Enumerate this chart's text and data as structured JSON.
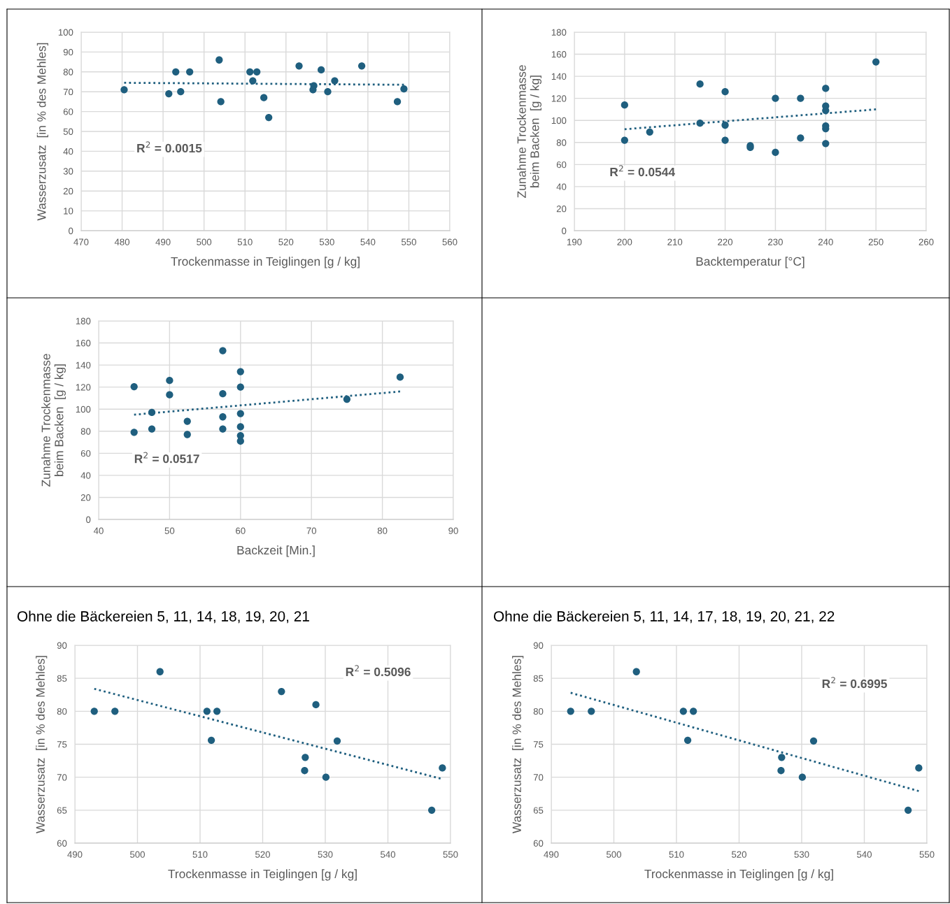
{
  "chart_data": [
    {
      "type": "scatter",
      "xlabel": "Trockenmasse in Teiglingen [g / kg]",
      "ylabel": "Wasserzusatz  [in % des Mehles]",
      "xlim": [
        470,
        560
      ],
      "xticks": [
        470,
        480,
        490,
        500,
        510,
        520,
        530,
        540,
        550,
        560
      ],
      "ylim": [
        0,
        100
      ],
      "yticks": [
        0,
        10,
        20,
        30,
        40,
        50,
        60,
        70,
        80,
        90,
        100
      ],
      "grid": true,
      "annotations": [
        "R$^{2}$ = 0.0015"
      ],
      "series": [
        {
          "marker": "circle",
          "color": "#1f5f7f",
          "x": [
            480.5,
            491.4,
            493.1,
            494.3,
            496.5,
            503.7,
            504.1,
            511.2,
            512.9,
            511.9,
            514.6,
            515.8,
            523.2,
            526.8,
            526.6,
            528.6,
            530.2,
            531.9,
            538.5,
            547.2,
            548.8
          ],
          "values": [
            71,
            69,
            80,
            70,
            80,
            86,
            65,
            80,
            80,
            75.5,
            67,
            57,
            83,
            73,
            71,
            81,
            70,
            75.5,
            83,
            65,
            71.4
          ]
        },
        {
          "type": "line",
          "marker": "none",
          "line_style": "dotted",
          "color": "#1f5f7f",
          "x": [
            480.5,
            548.8
          ],
          "values": [
            74.5,
            73.5
          ]
        }
      ]
    },
    {
      "type": "scatter",
      "xlabel": "Backtemperatur [°C]",
      "ylabel": "Zunahme Trockenmasse\nbeim Backen  [g / kg]",
      "xlim": [
        190,
        260
      ],
      "xticks": [
        190,
        200,
        210,
        220,
        230,
        240,
        250,
        260
      ],
      "ylim": [
        0,
        180
      ],
      "yticks": [
        0,
        20,
        40,
        60,
        80,
        100,
        120,
        140,
        160,
        180
      ],
      "grid": true,
      "annotations": [
        "R$^{2}$ = 0.0544"
      ],
      "series": [
        {
          "marker": "circle",
          "color": "#1f5f7f",
          "x": [
            200,
            200,
            205,
            215,
            215,
            220,
            220,
            220,
            225,
            225,
            230,
            230,
            235,
            235,
            240,
            240,
            240,
            240,
            240,
            240,
            250
          ],
          "values": [
            114,
            82,
            89.5,
            133,
            97.5,
            126,
            95.7,
            82,
            77,
            75.5,
            120,
            71,
            120,
            84,
            129,
            113,
            109,
            95,
            92.5,
            79,
            153
          ]
        },
        {
          "type": "line",
          "marker": "none",
          "line_style": "dotted",
          "color": "#1f5f7f",
          "x": [
            200,
            250
          ],
          "values": [
            92,
            110
          ]
        }
      ]
    },
    {
      "type": "scatter",
      "xlabel": "Backzeit [Min.]",
      "ylabel": "Zunahme Trockenmasse\nbeim Backen  [g / kg]",
      "xlim": [
        40,
        90
      ],
      "xticks": [
        40,
        50,
        60,
        70,
        80,
        90
      ],
      "ylim": [
        0,
        180
      ],
      "yticks": [
        0,
        20,
        40,
        60,
        80,
        100,
        120,
        140,
        160,
        180
      ],
      "grid": true,
      "annotations": [
        "R$^{2}$ = 0.0517"
      ],
      "series": [
        {
          "marker": "circle",
          "color": "#1f5f7f",
          "x": [
            45,
            45,
            47.5,
            47.5,
            50,
            50,
            52.5,
            52.5,
            57.5,
            57.5,
            57.5,
            57.5,
            60,
            60,
            60,
            60,
            60,
            60,
            75,
            82.5
          ],
          "values": [
            120.4,
            79,
            97,
            82,
            126,
            113,
            89,
            77,
            153,
            114,
            93,
            82,
            134,
            120,
            96,
            84,
            76,
            71,
            109,
            129
          ]
        },
        {
          "type": "line",
          "marker": "none",
          "line_style": "dotted",
          "color": "#1f5f7f",
          "x": [
            45,
            82.5
          ],
          "values": [
            95,
            116
          ]
        }
      ]
    },
    {
      "type": "scatter",
      "title": "Ohne die Bäckereien 5, 11, 14, 18, 19, 20, 21",
      "xlabel": "Trockenmasse in Teiglingen [g / kg]",
      "ylabel": "Wasserzusatz  [in % des Mehles]",
      "xlim": [
        490,
        550
      ],
      "xticks": [
        490,
        500,
        510,
        520,
        530,
        540,
        550
      ],
      "ylim": [
        60,
        90
      ],
      "yticks": [
        60,
        65,
        70,
        75,
        80,
        85,
        90
      ],
      "grid": true,
      "annotations": [
        "R$^{2}$ = 0.5096"
      ],
      "series": [
        {
          "marker": "circle",
          "color": "#1f5f7f",
          "x": [
            493.1,
            496.4,
            503.6,
            511.1,
            512.7,
            511.8,
            523,
            528.5,
            526.8,
            526.7,
            530.1,
            531.9,
            547,
            548.7
          ],
          "values": [
            80,
            80,
            86,
            80,
            80,
            75.6,
            83,
            81,
            73,
            71,
            70,
            75.5,
            65,
            71.4
          ]
        },
        {
          "type": "line",
          "marker": "none",
          "line_style": "dotted",
          "color": "#1f5f7f",
          "x": [
            493.1,
            548.4
          ],
          "values": [
            83.4,
            69.8
          ]
        }
      ]
    },
    {
      "type": "scatter",
      "title": "Ohne die Bäckereien 5, 11, 14, 17, 18, 19, 20, 21, 22",
      "xlabel": "Trockenmasse in Teiglingen [g / kg]",
      "ylabel": "Wasserzusatz  [in % des Mehles]",
      "xlim": [
        490,
        550
      ],
      "xticks": [
        490,
        500,
        510,
        520,
        530,
        540,
        550
      ],
      "ylim": [
        60,
        90
      ],
      "yticks": [
        60,
        65,
        70,
        75,
        80,
        85,
        90
      ],
      "grid": true,
      "annotations": [
        "R$^{2}$ = 0.6995"
      ],
      "series": [
        {
          "marker": "circle",
          "color": "#1f5f7f",
          "x": [
            493.1,
            496.4,
            503.6,
            511.1,
            512.7,
            511.8,
            526.8,
            526.7,
            530.1,
            531.9,
            547,
            548.7
          ],
          "values": [
            80,
            80,
            86,
            80,
            80,
            75.6,
            73,
            71,
            70,
            75.5,
            65,
            71.4
          ]
        },
        {
          "type": "line",
          "marker": "none",
          "line_style": "dotted",
          "color": "#1f5f7f",
          "x": [
            493.1,
            548.7
          ],
          "values": [
            82.8,
            67.9
          ]
        }
      ]
    }
  ]
}
